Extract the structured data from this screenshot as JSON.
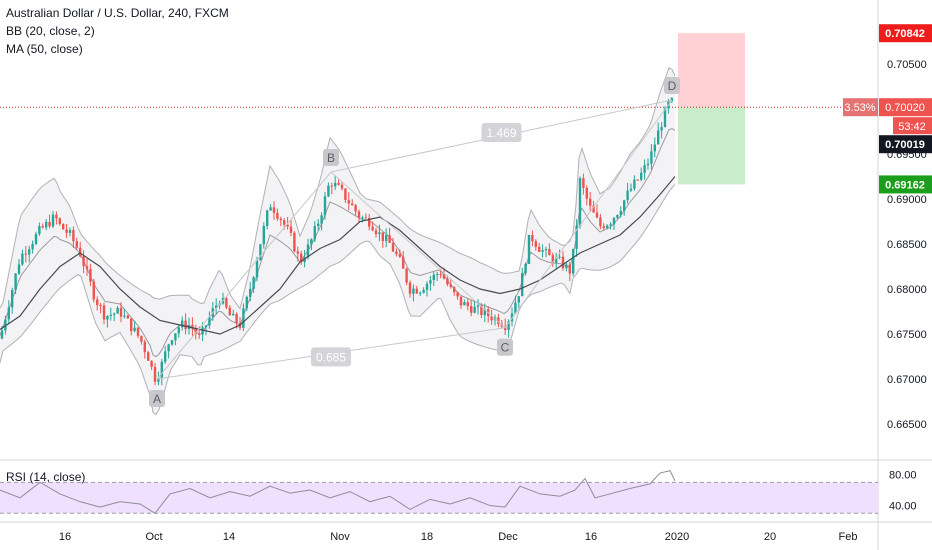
{
  "legend": {
    "symbol": "Australian Dollar / U.S. Dollar, 240, FXCM",
    "bb": "BB (20, close, 2)",
    "ma": "MA (50, close)"
  },
  "rsi_legend": "RSI (14, close)",
  "colors": {
    "up": "#26a69a",
    "down": "#ef5350",
    "bb_line": "#b0b0b8",
    "bb_fill": "#ececef",
    "ma": "#4a4a52",
    "rsi_fill": "#f0e0ff",
    "rsi_line": "#8c8c96",
    "stop_zone": "#ffcdd2",
    "target_zone": "#c8ebc8",
    "price_line": "#c62828"
  },
  "chart_data": {
    "type": "line",
    "title": "Australian Dollar / U.S. Dollar, 240, FXCM",
    "price_axis": {
      "ylim": [
        0.661,
        0.711
      ],
      "ticks": [
        "0.70500",
        "0.69500",
        "0.69000",
        "0.68500",
        "0.68000",
        "0.67500",
        "0.67000",
        "0.66500"
      ]
    },
    "time_axis": {
      "ticks": [
        "16",
        "Oct",
        "14",
        "Nov",
        "18",
        "Dec",
        "16",
        "2020",
        "20",
        "Feb"
      ]
    },
    "price_path": {
      "x": [
        0,
        10,
        20,
        40,
        55,
        60,
        70,
        80,
        95,
        105,
        120,
        130,
        140,
        150,
        154,
        160,
        170,
        180,
        190,
        200,
        210,
        220,
        230,
        240,
        250,
        260,
        270,
        280,
        290,
        300,
        310,
        320,
        330,
        340,
        350,
        360,
        370,
        380,
        390,
        400,
        410,
        420,
        430,
        440,
        450,
        460,
        470,
        480,
        490,
        500,
        505,
        510,
        520,
        530,
        540,
        550,
        560,
        570,
        575,
        580,
        590,
        600,
        610,
        620,
        630,
        640,
        650,
        660,
        665,
        670,
        675
      ],
      "y": [
        0.6745,
        0.679,
        0.6835,
        0.6865,
        0.688,
        0.687,
        0.686,
        0.684,
        0.679,
        0.677,
        0.6775,
        0.676,
        0.6745,
        0.672,
        0.67,
        0.671,
        0.6745,
        0.676,
        0.676,
        0.6745,
        0.677,
        0.679,
        0.677,
        0.676,
        0.68,
        0.685,
        0.6895,
        0.688,
        0.686,
        0.683,
        0.685,
        0.688,
        0.692,
        0.691,
        0.6895,
        0.688,
        0.6875,
        0.686,
        0.685,
        0.683,
        0.68,
        0.68,
        0.681,
        0.682,
        0.68,
        0.6785,
        0.678,
        0.6775,
        0.677,
        0.6765,
        0.676,
        0.677,
        0.68,
        0.686,
        0.6845,
        0.6835,
        0.683,
        0.682,
        0.685,
        0.692,
        0.689,
        0.687,
        0.6875,
        0.689,
        0.691,
        0.6925,
        0.6945,
        0.698,
        0.6995,
        0.701,
        0.7002
      ]
    },
    "ma_path": {
      "x": [
        0,
        20,
        40,
        60,
        80,
        100,
        120,
        140,
        160,
        180,
        200,
        220,
        240,
        260,
        280,
        300,
        320,
        340,
        360,
        380,
        400,
        420,
        440,
        460,
        480,
        500,
        520,
        540,
        560,
        580,
        600,
        620,
        640,
        660,
        675
      ],
      "y": [
        0.6755,
        0.677,
        0.68,
        0.6825,
        0.684,
        0.6825,
        0.68,
        0.678,
        0.6765,
        0.676,
        0.6755,
        0.675,
        0.676,
        0.678,
        0.68,
        0.683,
        0.6845,
        0.6855,
        0.6875,
        0.688,
        0.6865,
        0.6845,
        0.6825,
        0.681,
        0.68,
        0.6795,
        0.68,
        0.681,
        0.6825,
        0.684,
        0.685,
        0.686,
        0.688,
        0.6905,
        0.6925
      ]
    },
    "pattern": {
      "points": [
        {
          "label": "A",
          "x": 157,
          "y": 0.67
        },
        {
          "label": "B",
          "x": 331,
          "y": 0.693
        },
        {
          "label": "C",
          "x": 505,
          "y": 0.6757
        },
        {
          "label": "D",
          "x": 672,
          "y": 0.701
        }
      ],
      "ratios": [
        {
          "text": "0.685",
          "between": [
            "A",
            "C"
          ]
        },
        {
          "text": "1.469",
          "between": [
            "B",
            "D"
          ]
        }
      ]
    },
    "position": {
      "entry": 0.7002,
      "stop": 0.70842,
      "target": 0.69162,
      "entry_label": "0.70020",
      "stop_label": "0.70842",
      "target_label": "0.69162",
      "pct_label": "3.53%",
      "countdown": "53:42",
      "last_label": "0.70019"
    },
    "rsi": {
      "ylim": [
        20,
        95
      ],
      "ticks": [
        "80.00",
        "40.00"
      ],
      "bands": [
        70,
        30
      ],
      "x": [
        0,
        20,
        40,
        60,
        80,
        100,
        120,
        140,
        155,
        170,
        190,
        210,
        230,
        250,
        270,
        290,
        310,
        330,
        350,
        370,
        390,
        410,
        430,
        450,
        470,
        490,
        505,
        520,
        540,
        560,
        575,
        585,
        595,
        610,
        630,
        650,
        660,
        670,
        675
      ],
      "y": [
        60,
        50,
        70,
        55,
        45,
        38,
        45,
        42,
        30,
        55,
        62,
        50,
        58,
        52,
        65,
        56,
        60,
        50,
        58,
        45,
        52,
        35,
        48,
        42,
        50,
        40,
        38,
        65,
        55,
        52,
        60,
        75,
        50,
        55,
        62,
        68,
        82,
        85,
        72
      ]
    }
  }
}
